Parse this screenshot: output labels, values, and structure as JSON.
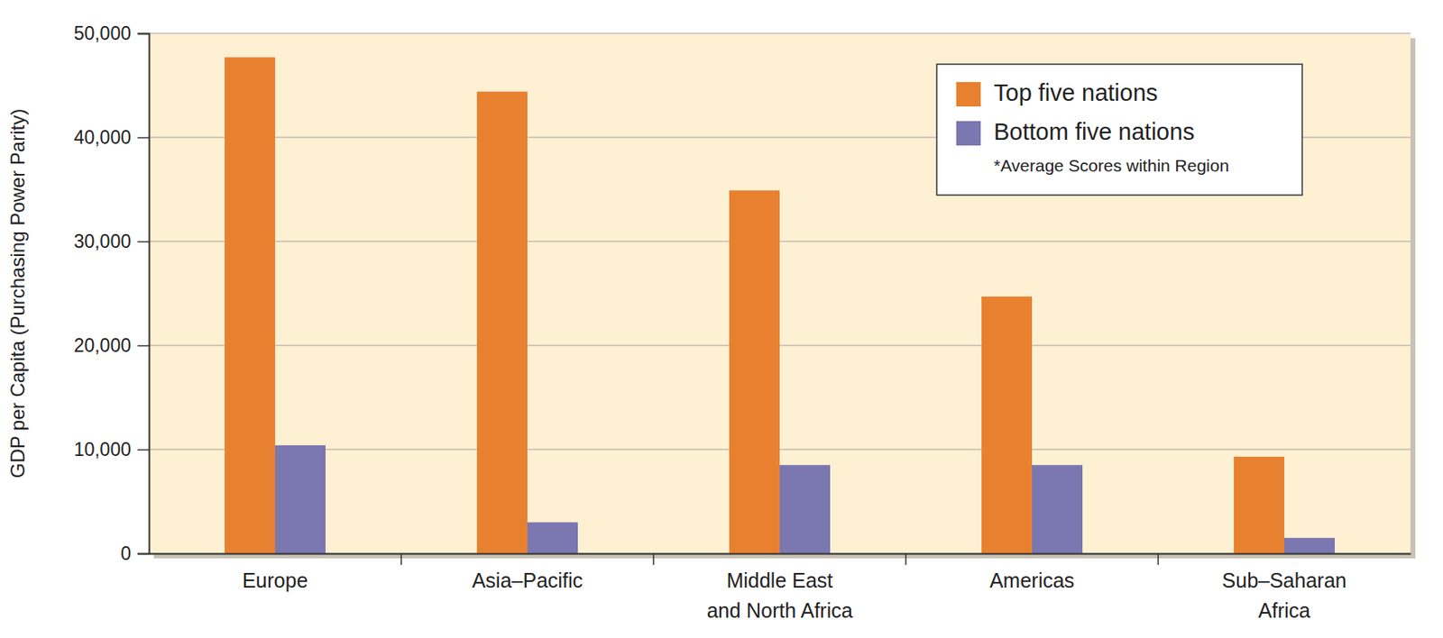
{
  "chart_data": {
    "type": "bar",
    "y_label": "GDP per Capita (Purchasing Power Parity)",
    "categories": [
      "Europe",
      "Asia–Pacific",
      "Middle East\nand North Africa",
      "Americas",
      "Sub–Saharan\nAfrica"
    ],
    "series": [
      {
        "name": "Top five nations",
        "color": "#e8812f",
        "values": [
          47700,
          44400,
          34900,
          24700,
          9300
        ]
      },
      {
        "name": "Bottom five nations",
        "color": "#7b77b0",
        "values": [
          10400,
          3000,
          8500,
          8500,
          1500
        ]
      }
    ],
    "ylim": [
      0,
      50000
    ],
    "yticks": [
      0,
      {
        "value": 10000,
        "label": "10,000"
      },
      {
        "value": 20000,
        "label": "20,000"
      },
      {
        "value": 30000,
        "label": "30,000"
      },
      {
        "value": 40000,
        "label": "40,000"
      },
      {
        "value": 50000,
        "label": "50,000"
      }
    ],
    "grid": true,
    "legend": "upper right",
    "annotation": "*Average Scores within Region"
  }
}
